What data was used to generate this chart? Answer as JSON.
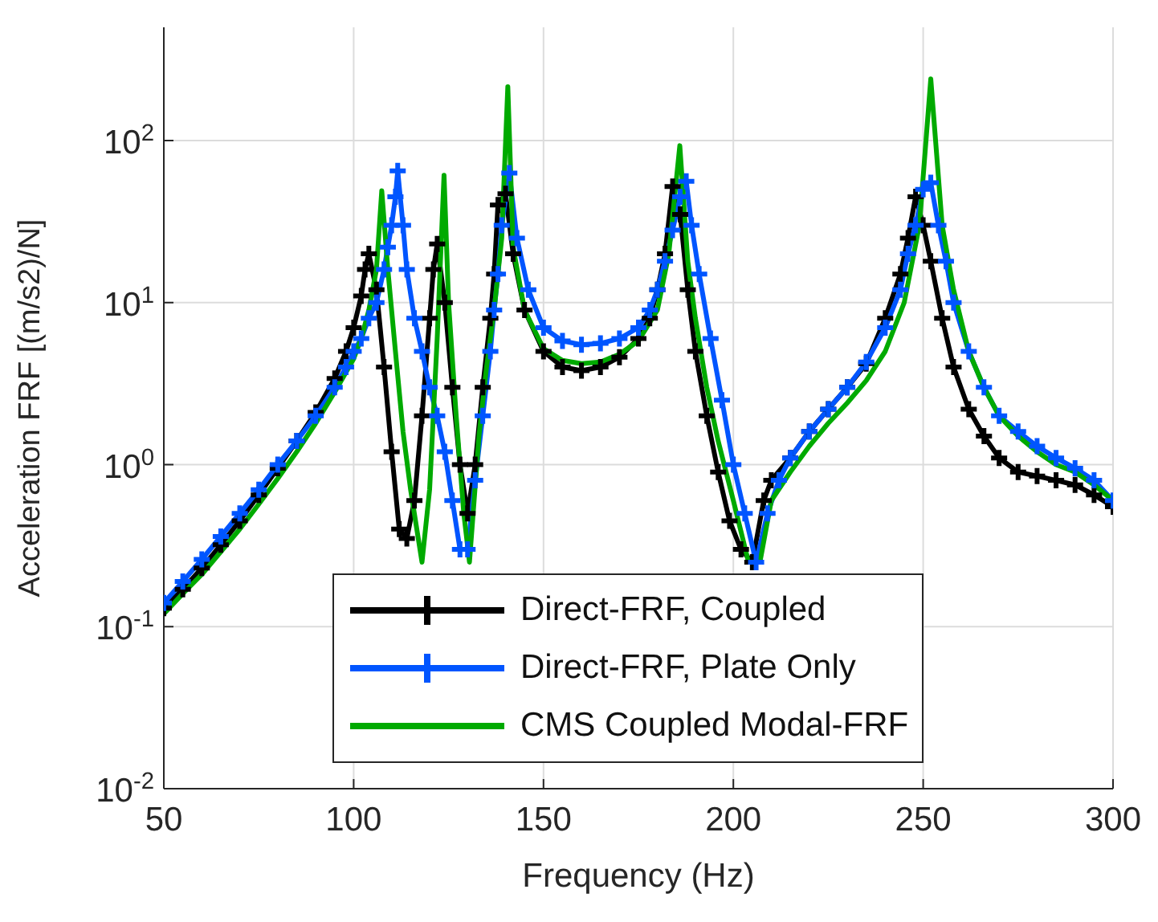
{
  "chart_data": {
    "type": "line",
    "xlabel": "Frequency (Hz)",
    "ylabel": "Acceleration FRF [(m/s2)/N]",
    "log": "y",
    "grid": true,
    "legend": "bottom",
    "line_style": "solid",
    "xlim": [
      50,
      300
    ],
    "xticks": [
      50,
      100,
      150,
      200,
      250,
      300
    ],
    "ylim": [
      0.01,
      500
    ],
    "yticks": [
      {
        "value": 0.01,
        "label": "10$^{-2}$"
      },
      {
        "value": 0.1,
        "label": "10$^{-1}$"
      },
      {
        "value": 1,
        "label": "10$^{0}$"
      },
      {
        "value": 10,
        "label": "10$^{1}$"
      },
      {
        "value": 100,
        "label": "10$^{2}$"
      }
    ],
    "series": [
      {
        "name": "Direct-FRF, Coupled",
        "color": "#000000",
        "marker": "cross",
        "x": [
          50,
          55,
          60,
          65,
          70,
          75,
          80,
          85,
          90,
          95,
          98,
          100,
          102,
          103,
          104,
          106,
          108,
          110,
          112,
          114,
          116,
          118,
          120,
          121,
          122,
          124,
          126,
          128,
          130,
          132,
          134,
          136,
          137,
          138,
          140,
          142,
          145,
          150,
          155,
          160,
          165,
          170,
          175,
          178,
          180,
          182,
          184,
          186,
          188,
          190,
          193,
          196,
          199,
          202,
          205,
          208,
          210,
          215,
          220,
          225,
          230,
          235,
          240,
          244,
          246,
          248,
          250,
          252,
          255,
          258,
          262,
          266,
          270,
          275,
          280,
          285,
          290,
          295,
          300
        ],
        "values": [
          0.13,
          0.17,
          0.23,
          0.32,
          0.45,
          0.65,
          0.95,
          1.4,
          2.1,
          3.4,
          5,
          7,
          11,
          16,
          20,
          12,
          4,
          1.2,
          0.4,
          0.35,
          0.6,
          2,
          8,
          16,
          23,
          10,
          3,
          1,
          0.5,
          1,
          3,
          8,
          15,
          40,
          47,
          20,
          9,
          5,
          4,
          3.8,
          4,
          4.6,
          6,
          8,
          12,
          20,
          52,
          35,
          12,
          5,
          2,
          0.9,
          0.45,
          0.3,
          0.25,
          0.6,
          0.8,
          1.1,
          1.6,
          2.2,
          3,
          4.2,
          8,
          15,
          25,
          45,
          30,
          18,
          8,
          4,
          2.2,
          1.5,
          1.1,
          0.9,
          0.85,
          0.8,
          0.75,
          0.65,
          0.55
        ]
      },
      {
        "name": "Direct-FRF, Plate Only",
        "color": "#0055ff",
        "marker": "cross",
        "x": [
          50,
          55,
          60,
          65,
          70,
          75,
          80,
          85,
          90,
          95,
          98,
          100,
          102,
          104,
          106,
          108,
          109,
          110,
          111,
          111.6,
          113,
          114,
          116,
          118,
          120,
          122,
          124,
          126,
          128,
          130,
          132,
          134,
          136,
          137,
          138,
          139,
          141,
          143,
          146,
          150,
          155,
          160,
          165,
          170,
          175,
          178,
          180,
          182,
          184,
          186,
          187.6,
          189,
          191,
          194,
          197,
          200,
          203,
          206,
          209,
          212,
          215,
          220,
          225,
          230,
          235,
          240,
          244,
          246,
          248,
          250,
          252,
          254,
          256,
          258,
          262,
          266,
          270,
          275,
          280,
          285,
          290,
          295,
          300
        ],
        "values": [
          0.14,
          0.19,
          0.26,
          0.36,
          0.5,
          0.7,
          1,
          1.4,
          2,
          3,
          4,
          5,
          6,
          8,
          10,
          16,
          22,
          30,
          45,
          65,
          30,
          16,
          8,
          5,
          3,
          2,
          1.2,
          0.6,
          0.3,
          0.3,
          0.8,
          2,
          5,
          9,
          15,
          30,
          63,
          25,
          12,
          7,
          5.8,
          5.5,
          5.6,
          6,
          7,
          9,
          12,
          18,
          28,
          45,
          56,
          30,
          15,
          6,
          2.5,
          1,
          0.5,
          0.25,
          0.5,
          0.8,
          1.1,
          1.6,
          2.2,
          3,
          4.3,
          7,
          12,
          20,
          30,
          50,
          55,
          30,
          18,
          10,
          5,
          3,
          2,
          1.6,
          1.3,
          1.1,
          0.95,
          0.8,
          0.6
        ]
      },
      {
        "name": "CMS Coupled Modal-FRF",
        "color": "#00aa00",
        "marker": "none",
        "x": [
          50,
          55,
          60,
          65,
          70,
          75,
          80,
          85,
          90,
          95,
          100,
          102,
          104,
          106,
          107.4,
          109,
          111,
          113,
          115,
          118,
          120,
          122,
          123.8,
          125,
          127,
          129,
          130.5,
          133,
          135,
          137,
          139,
          140.6,
          142,
          145,
          150,
          155,
          160,
          165,
          170,
          175,
          180,
          183,
          185.9,
          188,
          190,
          193,
          196,
          200,
          204,
          207,
          210,
          215,
          220,
          225,
          230,
          235,
          240,
          245,
          249,
          252,
          255,
          258,
          262,
          266,
          270,
          275,
          280,
          285,
          290,
          295,
          300
        ],
        "values": [
          0.12,
          0.16,
          0.21,
          0.29,
          0.4,
          0.57,
          0.82,
          1.2,
          1.8,
          2.8,
          4.5,
          6,
          9,
          16,
          49,
          16,
          5,
          1.6,
          0.7,
          0.25,
          0.7,
          6,
          61,
          10,
          2,
          0.5,
          0.25,
          1.5,
          4,
          9,
          25,
          215,
          22,
          9,
          5.2,
          4.4,
          4.2,
          4.3,
          4.8,
          5.8,
          9,
          20,
          93,
          18,
          8,
          3,
          1.4,
          0.6,
          0.25,
          0.25,
          0.6,
          0.9,
          1.3,
          1.8,
          2.4,
          3.3,
          5,
          10,
          30,
          240,
          30,
          12,
          5,
          3,
          2,
          1.5,
          1.2,
          1,
          0.9,
          0.75,
          0.6
        ]
      }
    ]
  }
}
